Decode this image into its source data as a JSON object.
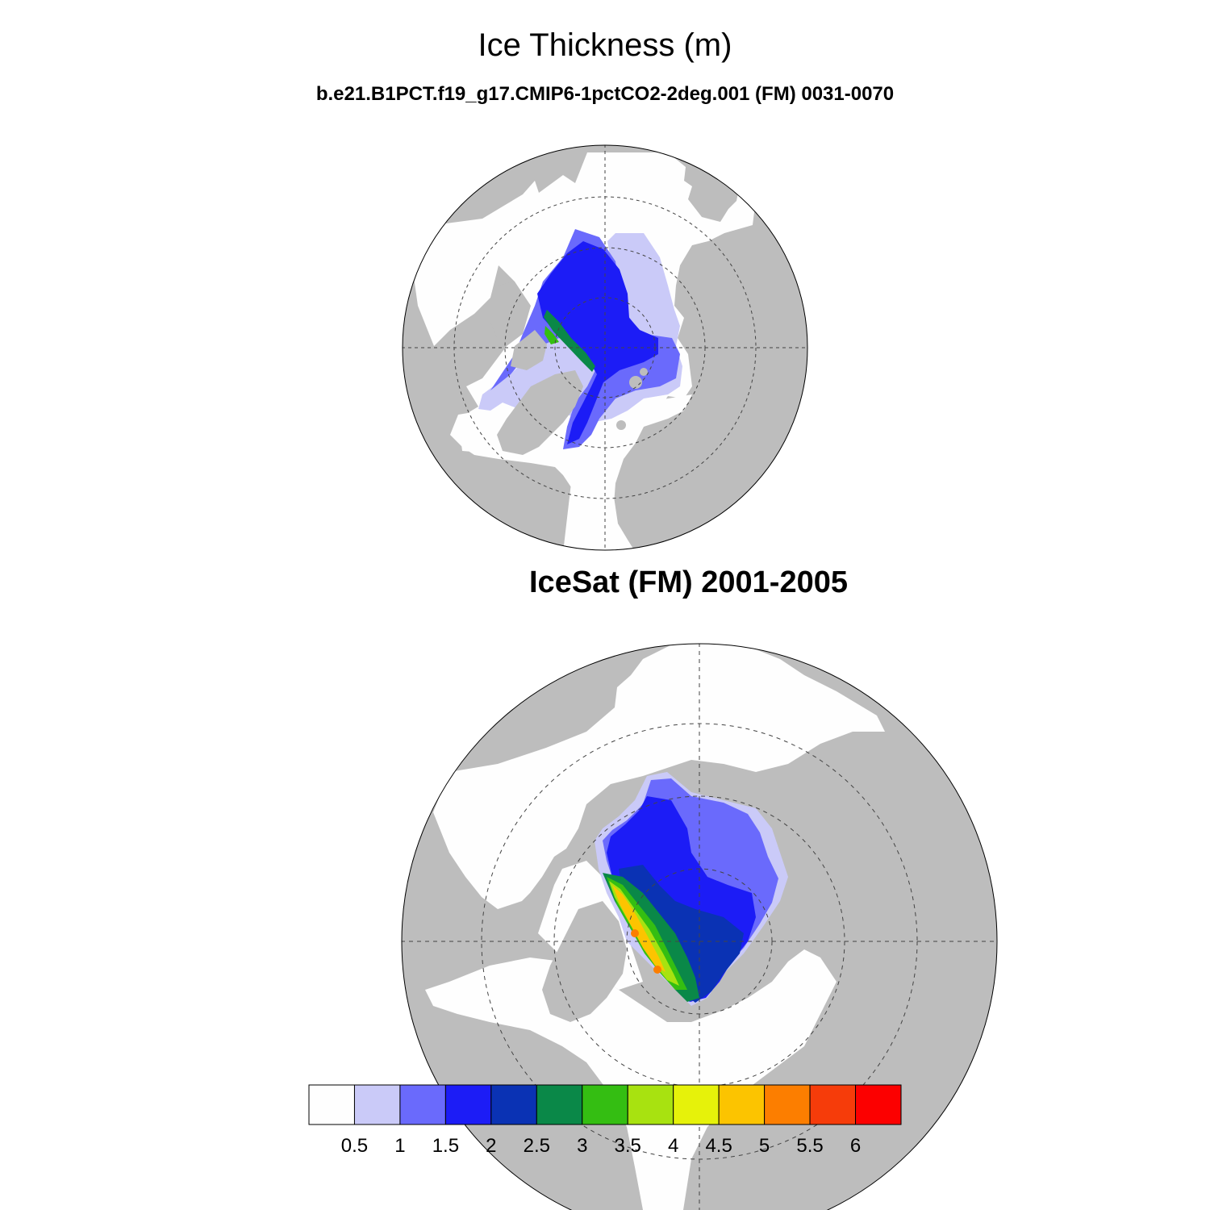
{
  "title": "Ice Thickness (m)",
  "model_panel": {
    "subtitle": "b.e21.B1PCT.f19_g17.CMIP6-1pctCO2-2deg.001 (FM) 0031-0070"
  },
  "obs_panel": {
    "title": "IceSat (FM) 2001-2005"
  },
  "colors": {
    "land": "#bdbdbd",
    "ocean": "#fefefe",
    "outline": "#000000",
    "grid": "#333333"
  },
  "colorbar": {
    "levels": [
      "0.5",
      "1",
      "1.5",
      "2",
      "2.5",
      "3",
      "3.5",
      "4",
      "4.5",
      "5",
      "5.5",
      "6"
    ],
    "colors": [
      "#fefefe",
      "#cacaf8",
      "#6a6afc",
      "#1c1cf6",
      "#0a32b4",
      "#0a8848",
      "#34be12",
      "#a8e210",
      "#e6f20a",
      "#fcc400",
      "#fc7e00",
      "#f63c0a",
      "#fc0000"
    ]
  }
}
